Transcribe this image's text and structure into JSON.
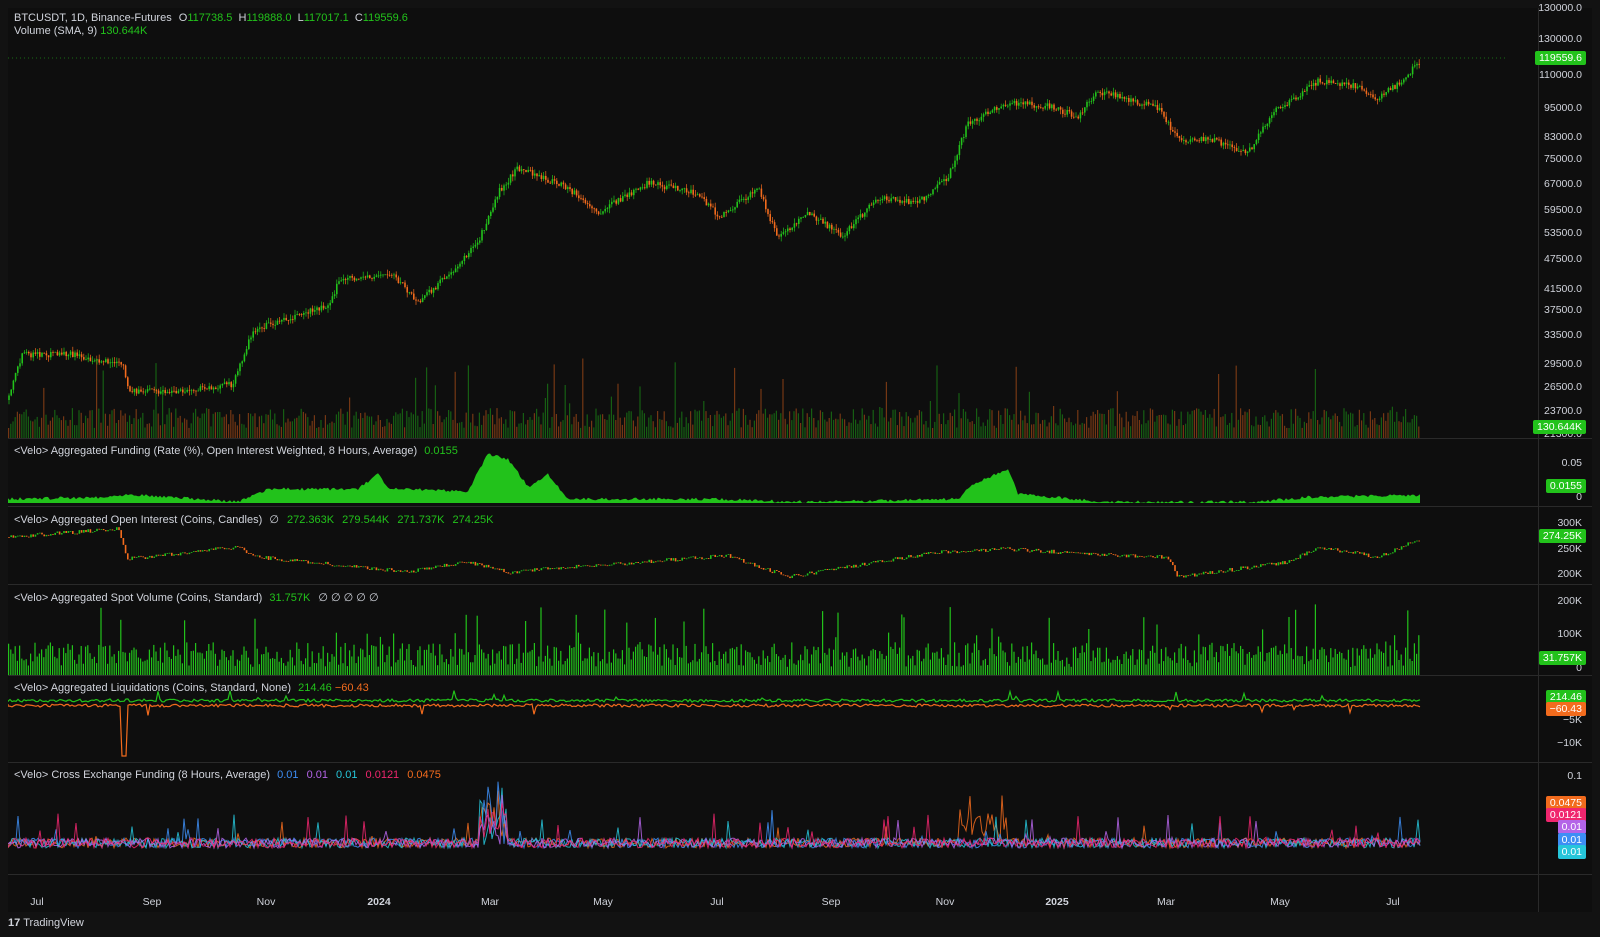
{
  "app": {
    "brand": "TradingView",
    "logo_glyph": "17"
  },
  "colors": {
    "up": "#22c21b",
    "down": "#f26b1d",
    "pink": "#f0266e",
    "blue": "#3d8ef5",
    "purple": "#b464e8",
    "cyan": "#26c6da",
    "bg": "#0e0e0e"
  },
  "main": {
    "symbol": "BTCUSDT, 1D, Binance-Futures",
    "o_label": "O",
    "o_value": "117738.5",
    "h_label": "H",
    "h_value": "119888.0",
    "l_label": "L",
    "l_value": "117017.1",
    "c_label": "C",
    "c_value": "119559.6",
    "volume_label": "Volume (SMA, 9)",
    "volume_value": "130.644K",
    "price_badge": "119559.6",
    "volume_badge": "130.644K",
    "y_ticks": [
      "130000.0",
      "119559.6",
      "110000.0",
      "95000.0",
      "83000.0",
      "75000.0",
      "67000.0",
      "59500.0",
      "53500.0",
      "47500.0",
      "41500.0",
      "37500.0",
      "33500.0",
      "29500.0",
      "26500.0",
      "23700.0",
      "21300.0"
    ]
  },
  "funding": {
    "label": "<Velo> Aggregated Funding (Rate (%), Open Interest Weighted, 8 Hours, Average)",
    "value": "0.0155",
    "badge": "0.0155",
    "y_ticks": [
      "0.05",
      "0"
    ]
  },
  "open_interest": {
    "label": "<Velo> Aggregated Open Interest (Coins, Candles)",
    "marker": "∅",
    "values": [
      "272.363K",
      "279.544K",
      "271.737K",
      "274.25K"
    ],
    "badge": "274.25K",
    "y_ticks": [
      "300K",
      "250K",
      "200K"
    ]
  },
  "spot_volume": {
    "label": "<Velo> Aggregated Spot Volume (Coins, Standard)",
    "value": "31.757K",
    "markers": "∅ ∅ ∅ ∅ ∅",
    "badge": "31.757K",
    "y_ticks": [
      "200K",
      "100K",
      "0"
    ]
  },
  "liquidations": {
    "label": "<Velo> Aggregated Liquidations (Coins, Standard, None)",
    "value_long": "214.46",
    "value_short": "−60.43",
    "badge_long": "214.46",
    "badge_short": "−60.43",
    "y_ticks": [
      "−5K",
      "−10K"
    ]
  },
  "cross_funding": {
    "label": "<Velo> Cross Exchange Funding (8 Hours, Average)",
    "values": [
      "0.01",
      "0.01",
      "0.01",
      "0.0121",
      "0.0475"
    ],
    "badges": [
      "0.0475",
      "0.0121",
      "0.01",
      "0.01",
      "0.01"
    ],
    "y_ticks": [
      "0.1"
    ]
  },
  "x_axis": [
    "Jul",
    "Sep",
    "Nov",
    "2024",
    "Mar",
    "May",
    "Jul",
    "Sep",
    "Nov",
    "2025",
    "Mar",
    "May",
    "Jul"
  ]
}
